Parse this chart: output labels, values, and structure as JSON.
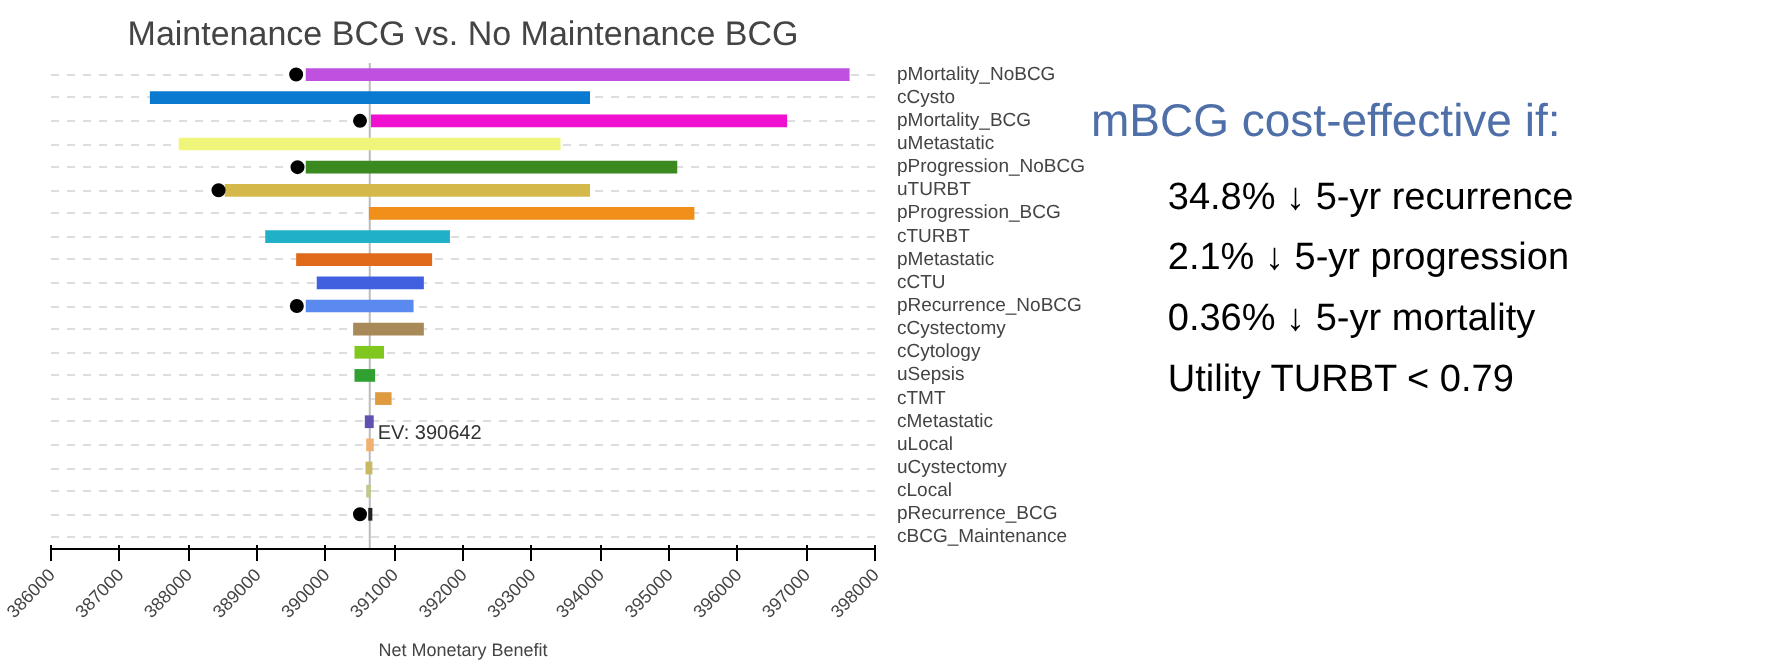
{
  "chart_data": [
    {
      "type": "bar",
      "title": "Maintenance BCG vs. No Maintenance BCG",
      "xlabel": "Net Monetary Benefit",
      "orientation": "horizontal",
      "categories": [
        "pMortality_NoBCG",
        "cCysto",
        "pMortality_BCG",
        "uMetastatic",
        "pProgression_NoBCG",
        "uTURBT",
        "pProgression_BCG",
        "cTURBT",
        "pMetastatic",
        "cCTU",
        "pRecurrence_NoBCG",
        "cCystectomy",
        "cCytology",
        "uSepsis",
        "cTMT",
        "cMetastatic",
        "uLocal",
        "uCystectomy",
        "cLocal",
        "pRecurrence_BCG",
        "cBCG_Maintenance"
      ],
      "series": [
        {
          "type": "bar",
          "base": [
            389710,
            387440,
            390660,
            387860,
            389710,
            388530,
            390630,
            389120,
            389570,
            389870,
            389710,
            390400,
            390420,
            390420,
            390720,
            390570,
            390590,
            390580,
            390590,
            390620,
            null
          ],
          "values": [
            7920,
            6410,
            6060,
            5560,
            5410,
            5320,
            4740,
            2690,
            1980,
            1560,
            1570,
            1030,
            430,
            300,
            240,
            130,
            110,
            100,
            70,
            60,
            null
          ],
          "colors": [
            "#c050e0",
            "#0a7ad0",
            "#f010d0",
            "#eef57a",
            "#3a8a20",
            "#d4b84a",
            "#f0901a",
            "#20b0c8",
            "#e06a1a",
            "#4060e0",
            "#5a8af0",
            "#a88a58",
            "#80c820",
            "#30a030",
            "#e09a40",
            "#6050b0",
            "#f0b070",
            "#c8b860",
            "#c0c890",
            "#222222",
            "#888888"
          ]
        },
        {
          "type": "scatter",
          "color": "#000000",
          "marker": "circle",
          "values": [
            389570,
            null,
            390500,
            null,
            389590,
            388440,
            null,
            null,
            null,
            null,
            389580,
            null,
            null,
            null,
            null,
            null,
            null,
            null,
            null,
            390500,
            null
          ]
        }
      ],
      "xlim": [
        386000,
        398000
      ],
      "xticks": [
        386000,
        387000,
        388000,
        389000,
        390000,
        391000,
        392000,
        393000,
        394000,
        395000,
        396000,
        397000,
        398000
      ],
      "grid": "y",
      "ref_lines": [
        {
          "axis": "x",
          "value": 390642,
          "label": "EV: 390642",
          "color": "#bbbbbb"
        }
      ]
    },
    {
      "type": "other",
      "title": "mBCG cost-effective if:",
      "annotations": [
        "34.8% ↓ 5-yr recurrence",
        "2.1%   ↓ 5-yr progression",
        "0.36% ↓ 5-yr mortality",
        "Utility TURBT < 0.79"
      ]
    }
  ]
}
